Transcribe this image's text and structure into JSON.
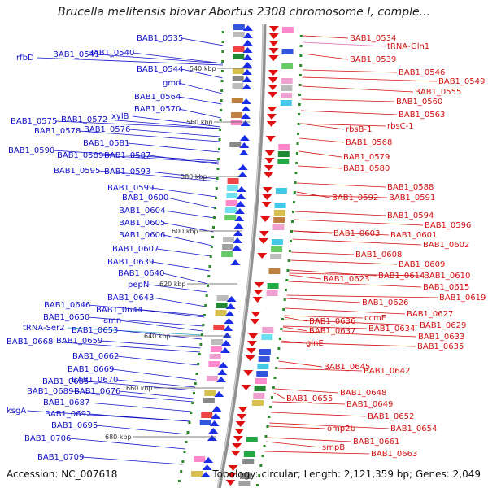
{
  "title": "Brucella melitensis biovar Abortus 2308 chromosome I, comple...",
  "footer": {
    "accession": "Accession: NC_007618",
    "summary": "Topology: circular; Length: 2,121,359 bp; Genes: 2,049"
  },
  "colors": {
    "left_label": "#1010c8",
    "right_label": "#d41010",
    "trna_left": "#22a0c8",
    "trna_right": "#e070b8",
    "backbone": "#909090",
    "forward_arrow": "#1a2ee8",
    "reverse_arrow": "#e01010",
    "tick": "#2a8a2a"
  },
  "ticks": [
    "540 kbp",
    "560 kbp",
    "580 kbp",
    "600 kbp",
    "620 kbp",
    "640 kbp",
    "660 kbp",
    "680 kbp"
  ],
  "left_labels": [
    "BAB1_0535",
    "BAB1_0541",
    "BAB1_0540",
    "rfbD",
    "BAB1_0544",
    "gmd",
    "BAB1_0564",
    "BAB1_0570",
    "xylB",
    "BAB1_0575",
    "BAB1_0572",
    "BAB1_0578",
    "BAB1_0576",
    "BAB1_0581",
    "BAB1_0590",
    "BAB1_0589",
    "BAB1_0587",
    "BAB1_0595",
    "BAB1_0593",
    "BAB1_0599",
    "BAB1_0600",
    "BAB1_0604",
    "BAB1_0605",
    "BAB1_0606",
    "BAB1_0607",
    "BAB1_0639",
    "BAB1_0640",
    "pepN",
    "BAB1_0643",
    "BAB1_0646",
    "BAB1_0644",
    "BAB1_0650",
    "amn",
    "tRNA-Ser2",
    "BAB1_0653",
    "BAB1_0668",
    "BAB1_0659",
    "BAB1_0662",
    "BAB1_0669",
    "BAB1_0670",
    "BAB1_0685",
    "BAB1_0689",
    "BAB1_0676",
    "BAB1_0687",
    "ksgA",
    "BAB1_0692",
    "BAB1_0695",
    "BAB1_0706",
    "BAB1_0709"
  ],
  "right_labels": [
    "BAB1_0534",
    "tRNA-Gln1",
    "BAB1_0539",
    "BAB1_0546",
    "BAB1_0549",
    "BAB1_0555",
    "BAB1_0560",
    "BAB1_0563",
    "rbsB-1",
    "rbsC-1",
    "BAB1_0568",
    "BAB1_0579",
    "BAB1_0580",
    "BAB1_0588",
    "BAB1_0592",
    "BAB1_0591",
    "BAB1_0594",
    "BAB1_0596",
    "BAB1_0603",
    "BAB1_0601",
    "BAB1_0602",
    "BAB1_0608",
    "BAB1_0609",
    "BAB1_0614",
    "BAB1_0610",
    "BAB1_0623",
    "BAB1_0615",
    "BAB1_0619",
    "BAB1_0626",
    "BAB1_0627",
    "ccmE",
    "BAB1_0636",
    "BAB1_0629",
    "BAB1_0634",
    "BAB1_0637",
    "BAB1_0633",
    "glnE",
    "BAB1_0635",
    "BAB1_0645",
    "BAB1_0642",
    "BAB1_0648",
    "BAB1_0655",
    "BAB1_0649",
    "BAB1_0652",
    "BAB1_0654",
    "omp2b",
    "BAB1_0661",
    "smpB",
    "BAB1_0663"
  ]
}
